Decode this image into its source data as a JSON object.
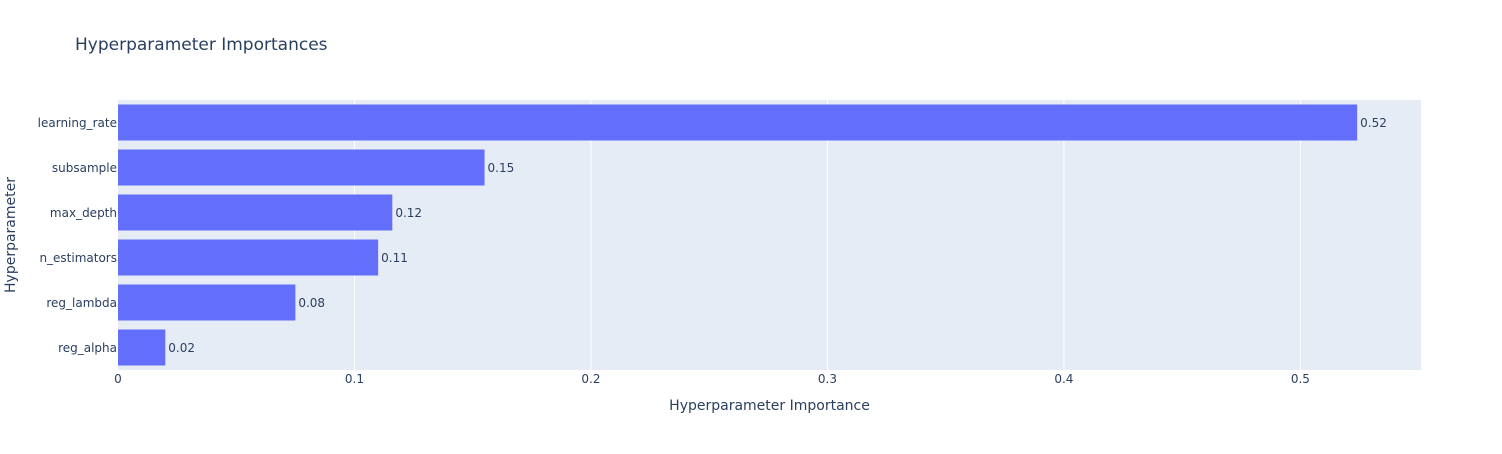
{
  "chart_data": {
    "type": "bar",
    "orientation": "horizontal",
    "title": "Hyperparameter Importances",
    "xlabel": "Hyperparameter Importance",
    "ylabel": "Hyperparameter",
    "categories": [
      "learning_rate",
      "subsample",
      "max_depth",
      "n_estimators",
      "reg_lambda",
      "reg_alpha"
    ],
    "values": [
      0.524,
      0.155,
      0.116,
      0.11,
      0.075,
      0.02
    ],
    "value_labels": [
      "0.52",
      "0.15",
      "0.12",
      "0.11",
      "0.08",
      "0.02"
    ],
    "xlim": [
      0,
      0.551
    ],
    "x_ticks": [
      0,
      0.1,
      0.2,
      0.3,
      0.4,
      0.5
    ],
    "x_tick_labels": [
      "0",
      "0.1",
      "0.2",
      "0.3",
      "0.4",
      "0.5"
    ],
    "grid": true,
    "legend": "none",
    "colors": {
      "bar": "#636efa",
      "plot_bg": "#e5ecf6",
      "grid": "#ffffff",
      "text": "#2a3f5f"
    }
  }
}
